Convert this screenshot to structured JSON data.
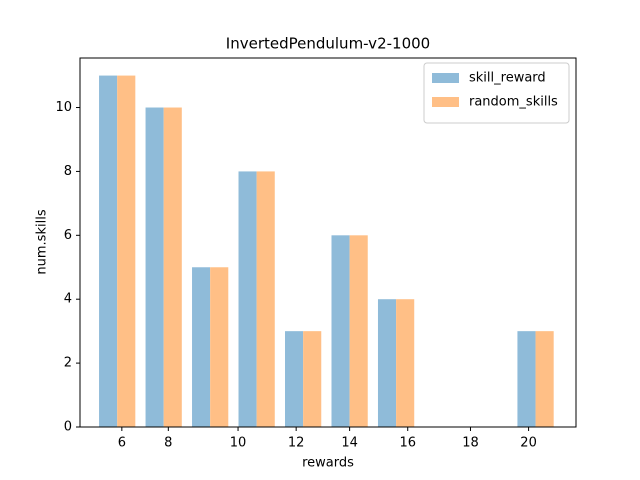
{
  "chart_data": {
    "type": "histogram",
    "title": "InvertedPendulum-v2-1000",
    "xlabel": "rewards",
    "ylabel": "num.skills",
    "bins": [
      0,
      1,
      2,
      3,
      4,
      5,
      6,
      7,
      8,
      9,
      10
    ],
    "series": [
      {
        "name": "skill_reward",
        "color": "#8fbbd9",
        "values": [
          11,
          10,
          5,
          8,
          3,
          6,
          4,
          0,
          0,
          3
        ]
      },
      {
        "name": "random_skills",
        "color": "#ffbf86",
        "values": [
          11,
          10,
          5,
          8,
          3,
          6,
          4,
          0,
          0,
          3
        ]
      }
    ],
    "xlim": [
      -0.3,
      10.37
    ],
    "xticks": [
      {
        "value": 0.6,
        "label": "6"
      },
      {
        "value": 1.6,
        "label": "8"
      },
      {
        "value": 3.1,
        "label": "10"
      },
      {
        "value": 4.35,
        "label": "12"
      },
      {
        "value": 5.5,
        "label": "14"
      },
      {
        "value": 6.75,
        "label": "16"
      },
      {
        "value": 8.1,
        "label": "18"
      },
      {
        "value": 9.35,
        "label": "20"
      }
    ],
    "ylim": [
      0,
      11.55
    ],
    "yticks": [
      0,
      2,
      4,
      6,
      8,
      10
    ],
    "legend": "upper right"
  }
}
